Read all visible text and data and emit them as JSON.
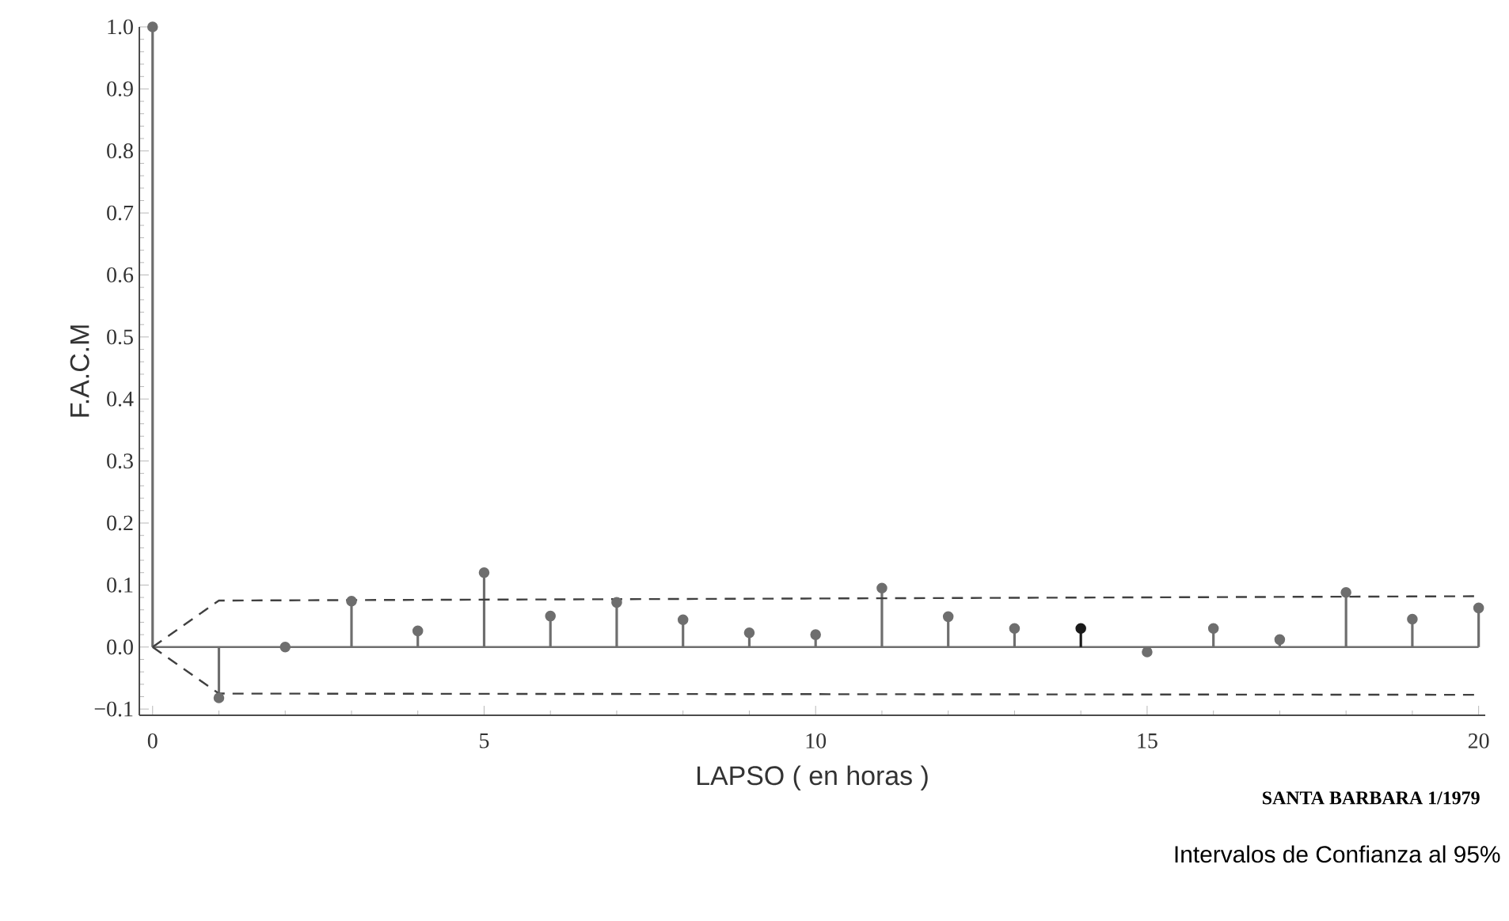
{
  "chart_data": {
    "type": "lollipop",
    "xlabel": "LAPSO  ( en horas )",
    "ylabel": "F.A.C.M",
    "annotations": [
      "SANTA BARBARA 1/1979",
      "Intervalos de Confianza al 95%"
    ],
    "xlim": [
      -0.2,
      20.1
    ],
    "ylim": [
      -0.11,
      1.0
    ],
    "xticks": [
      0,
      5,
      10,
      15,
      20
    ],
    "yticks": [
      {
        "value": -0.1,
        "label": "−0.1"
      },
      {
        "value": 0.0,
        "label": "0.0"
      },
      {
        "value": 0.1,
        "label": "0.1"
      },
      {
        "value": 0.2,
        "label": "0.2"
      },
      {
        "value": 0.3,
        "label": "0.3"
      },
      {
        "value": 0.4,
        "label": "0.4"
      },
      {
        "value": 0.5,
        "label": "0.5"
      },
      {
        "value": 0.6,
        "label": "0.6"
      },
      {
        "value": 0.7,
        "label": "0.7"
      },
      {
        "value": 0.8,
        "label": "0.8"
      },
      {
        "value": 0.9,
        "label": "0.9"
      },
      {
        "value": 1.0,
        "label": "1.0"
      }
    ],
    "grid": false,
    "series": [
      {
        "marker": "circle",
        "x": [
          0,
          1,
          2,
          3,
          4,
          5,
          6,
          7,
          8,
          9,
          10,
          11,
          12,
          13,
          14,
          15,
          16,
          17,
          18,
          19,
          20
        ],
        "values": [
          1.0,
          -0.082,
          0.0,
          0.074,
          0.026,
          0.12,
          0.05,
          0.072,
          0.044,
          0.023,
          0.02,
          0.095,
          0.049,
          0.03,
          0.03,
          -0.008,
          0.03,
          0.012,
          0.088,
          0.045,
          0.063
        ],
        "colors": [
          "#6e6e6e",
          "#6e6e6e",
          "#6e6e6e",
          "#6e6e6e",
          "#6e6e6e",
          "#6e6e6e",
          "#6e6e6e",
          "#6e6e6e",
          "#6e6e6e",
          "#6e6e6e",
          "#6e6e6e",
          "#6e6e6e",
          "#6e6e6e",
          "#6e6e6e",
          "#1a1a1a",
          "#6e6e6e",
          "#6e6e6e",
          "#6e6e6e",
          "#6e6e6e",
          "#6e6e6e",
          "#6e6e6e"
        ]
      },
      {
        "type": "line",
        "line_style": "dashed",
        "color": "#404040",
        "x": [
          0,
          1,
          20
        ],
        "values": [
          0.0,
          0.075,
          0.082
        ]
      },
      {
        "type": "line",
        "line_style": "dashed",
        "color": "#404040",
        "x": [
          0,
          1,
          20
        ],
        "values": [
          0.0,
          -0.075,
          -0.077
        ]
      }
    ]
  }
}
